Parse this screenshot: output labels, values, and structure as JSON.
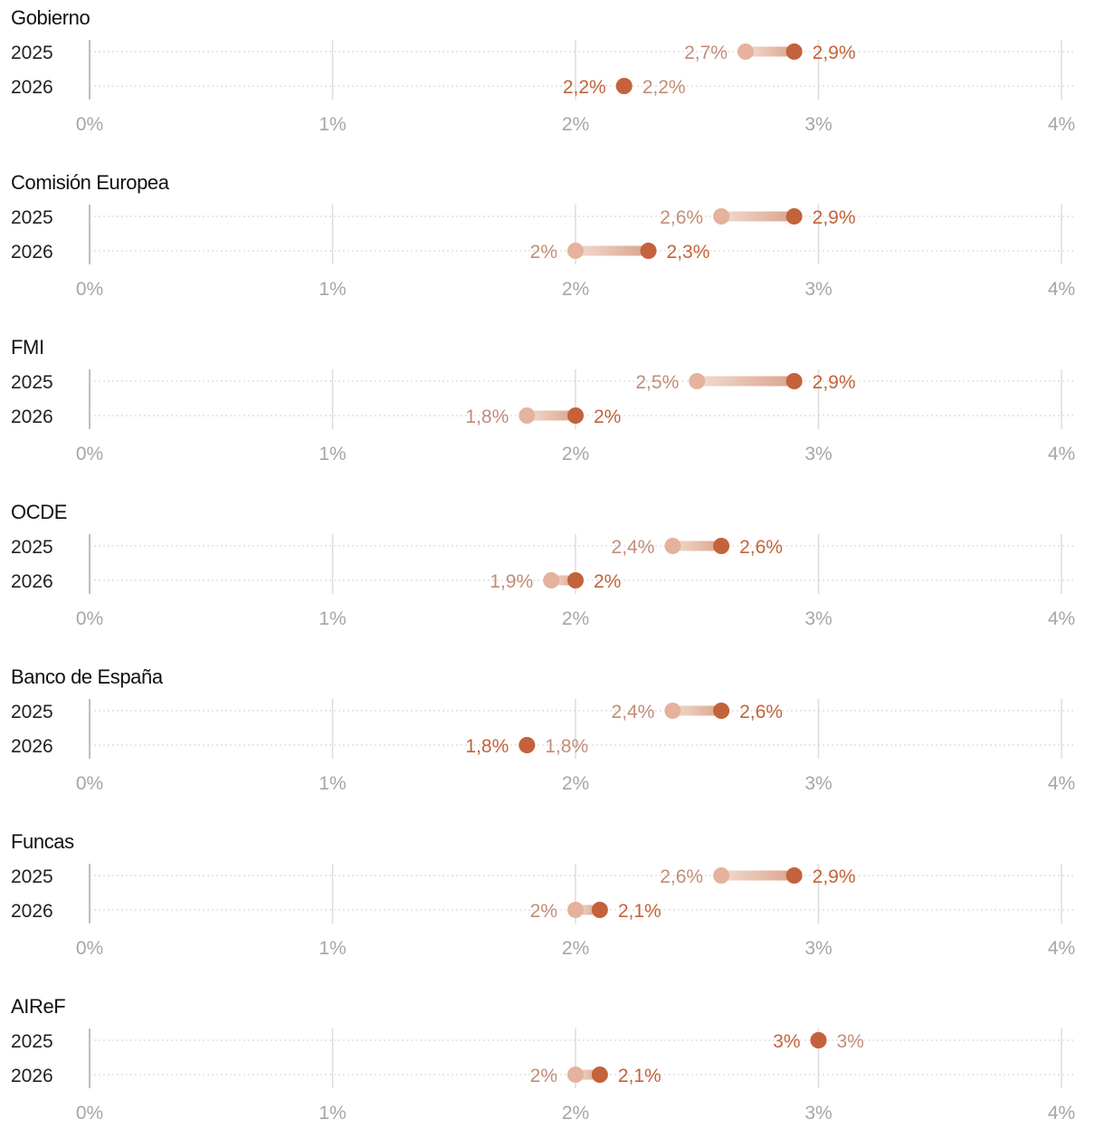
{
  "chart_data": {
    "type": "dumbbell",
    "x_ticks": [
      {
        "value": 0,
        "label": "0%"
      },
      {
        "value": 1,
        "label": "1%"
      },
      {
        "value": 2,
        "label": "2%"
      },
      {
        "value": 3,
        "label": "3%"
      },
      {
        "value": 4,
        "label": "4%"
      }
    ],
    "xlim": [
      0,
      4
    ],
    "colors": {
      "previous": "#e4b29d",
      "previous_label": "#c28d77",
      "current": "#c4623b",
      "current_label": "#c4623b",
      "tick_label": "#a6a6a6",
      "grid": "#dcdcdc",
      "dotted": "#cfcfcf",
      "title": "#111111",
      "year_label": "#222222"
    },
    "panels": [
      {
        "title": "Gobierno",
        "rows": [
          {
            "year": "2025",
            "previous": 2.7,
            "current": 2.9,
            "previous_label": "2,7%",
            "current_label": "2,9%"
          },
          {
            "year": "2026",
            "previous": 2.2,
            "current": 2.2,
            "previous_label": "2,2%",
            "current_label": "2,2%"
          }
        ]
      },
      {
        "title": "Comisión Europea",
        "rows": [
          {
            "year": "2025",
            "previous": 2.6,
            "current": 2.9,
            "previous_label": "2,6%",
            "current_label": "2,9%"
          },
          {
            "year": "2026",
            "previous": 2.0,
            "current": 2.3,
            "previous_label": "2%",
            "current_label": "2,3%"
          }
        ]
      },
      {
        "title": "FMI",
        "rows": [
          {
            "year": "2025",
            "previous": 2.5,
            "current": 2.9,
            "previous_label": "2,5%",
            "current_label": "2,9%"
          },
          {
            "year": "2026",
            "previous": 1.8,
            "current": 2.0,
            "previous_label": "1,8%",
            "current_label": "2%"
          }
        ]
      },
      {
        "title": "OCDE",
        "rows": [
          {
            "year": "2025",
            "previous": 2.4,
            "current": 2.6,
            "previous_label": "2,4%",
            "current_label": "2,6%"
          },
          {
            "year": "2026",
            "previous": 1.9,
            "current": 2.0,
            "previous_label": "1,9%",
            "current_label": "2%"
          }
        ]
      },
      {
        "title": "Banco de España",
        "rows": [
          {
            "year": "2025",
            "previous": 2.4,
            "current": 2.6,
            "previous_label": "2,4%",
            "current_label": "2,6%"
          },
          {
            "year": "2026",
            "previous": 1.8,
            "current": 1.8,
            "previous_label": "1,8%",
            "current_label": "1,8%"
          }
        ]
      },
      {
        "title": "Funcas",
        "rows": [
          {
            "year": "2025",
            "previous": 2.6,
            "current": 2.9,
            "previous_label": "2,6%",
            "current_label": "2,9%"
          },
          {
            "year": "2026",
            "previous": 2.0,
            "current": 2.1,
            "previous_label": "2%",
            "current_label": "2,1%"
          }
        ]
      },
      {
        "title": "AIReF",
        "rows": [
          {
            "year": "2025",
            "previous": 3.0,
            "current": 3.0,
            "previous_label": "3%",
            "current_label": "3%"
          },
          {
            "year": "2026",
            "previous": 2.0,
            "current": 2.1,
            "previous_label": "2%",
            "current_label": "2,1%"
          }
        ]
      }
    ]
  }
}
